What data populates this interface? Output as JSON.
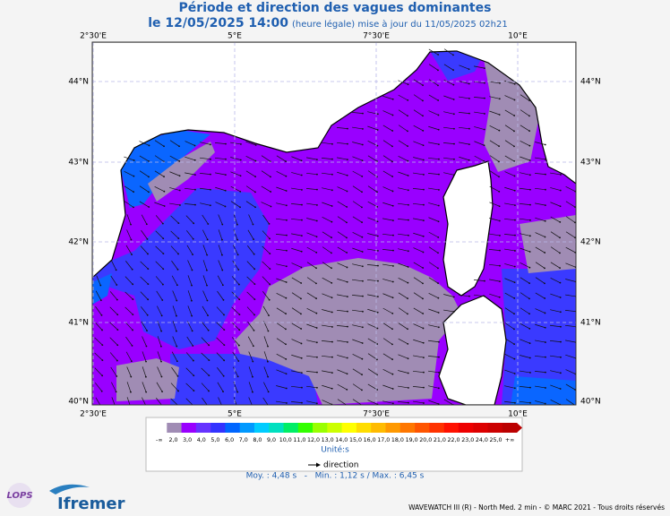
{
  "header": {
    "title": "Période et direction des vagues dominantes",
    "date": "le 12/05/2025 14:00",
    "update": "(heure légale) mise à jour du 11/05/2025 02h21"
  },
  "map": {
    "lon_labels": [
      "2°30'E",
      "5°E",
      "7°30'E",
      "10°E"
    ],
    "lat_labels": [
      "44°N",
      "43°N",
      "42°N",
      "41°N",
      "40°N"
    ]
  },
  "legend": {
    "labels": [
      "-∞",
      "2,0",
      "3,0",
      "4,0",
      "5,0",
      "6,0",
      "7,0",
      "8,0",
      "9,0",
      "10,0",
      "11,0",
      "12,0",
      "13,0",
      "14,0",
      "15,0",
      "16,0",
      "17,0",
      "18,0",
      "19,0",
      "20,0",
      "21,0",
      "22,0",
      "23,0",
      "24,0",
      "25,0",
      "+∞"
    ],
    "colors": [
      "#ffffff",
      "#a08cb4",
      "#9900ff",
      "#6633ff",
      "#3333ff",
      "#0066ff",
      "#0099ff",
      "#00ccff",
      "#00e0c0",
      "#00ee66",
      "#33ff00",
      "#99ff00",
      "#ccff00",
      "#ffff00",
      "#ffdd00",
      "#ffbb00",
      "#ff9900",
      "#ff7700",
      "#ff5500",
      "#ff3300",
      "#ff1100",
      "#ee0000",
      "#dd0000",
      "#cc0000",
      "#bb0000"
    ],
    "unit": "Unité:s",
    "direction": "direction",
    "stats": "Moy. : 4,48 s   -   Min. : 1,12 s / Max. : 6,45 s"
  },
  "footer": {
    "credit": "WAVEWATCH III (R) - North Med. 2 min - © MARC 2021 - Tous droits réservés",
    "logo_left": "LOPS",
    "logo_right": "Ifremer"
  }
}
